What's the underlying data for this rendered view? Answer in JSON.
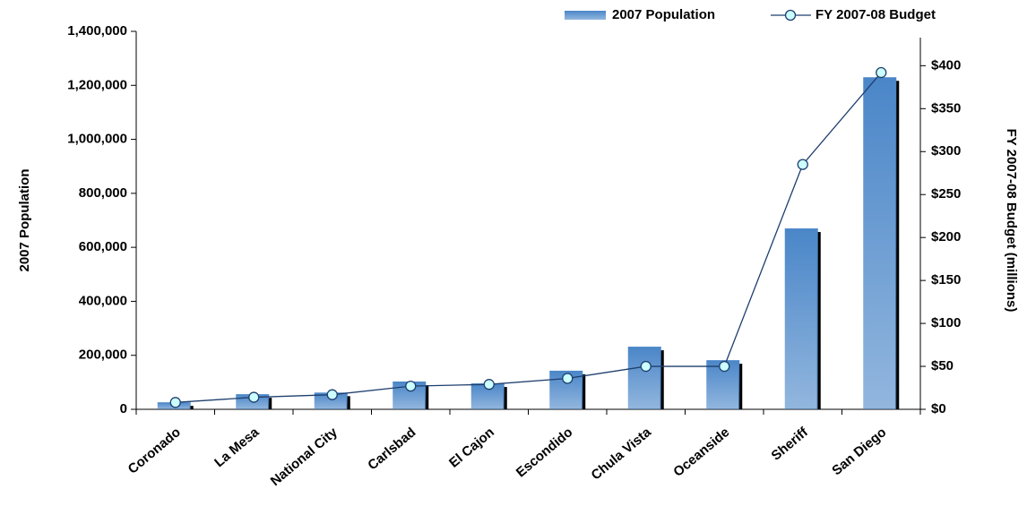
{
  "chart_data": {
    "type": "bar-line",
    "categories": [
      "Coronado",
      "La Mesa",
      "National City",
      "Carlsbad",
      "El Cajon",
      "Escondido",
      "Chula Vista",
      "Oceanside",
      "Sheriff",
      "San Diego"
    ],
    "series": [
      {
        "name": "2007 Population",
        "type": "bar",
        "color": "#4a86c8",
        "values": [
          26000,
          56000,
          62000,
          103000,
          96000,
          143000,
          232000,
          182000,
          670000,
          1230000
        ]
      },
      {
        "name": "FY 2007-08 Budget",
        "type": "line",
        "axis": "y2",
        "color": "#1f3f6e",
        "values": [
          8,
          14,
          17,
          27,
          29,
          36,
          50,
          50,
          285,
          392
        ]
      }
    ],
    "y_label": "2007 Population",
    "y2_label": "FY 2007-08 Budget (millions)",
    "ylim": [
      0,
      1400000
    ],
    "yticks": [
      0,
      {
        "value": 200000,
        "label": "200,000"
      },
      {
        "value": 400000,
        "label": "400,000"
      },
      {
        "value": 600000,
        "label": "600,000"
      },
      {
        "value": 800000,
        "label": "800,000"
      },
      {
        "value": 1000000,
        "label": "1,000,000"
      },
      {
        "value": 1200000,
        "label": "1,200,000"
      },
      {
        "value": 1400000,
        "label": "1,400,000"
      }
    ],
    "y2lim": [
      0,
      440
    ],
    "y2ticks": [
      {
        "value": 0,
        "label": "$0"
      },
      {
        "value": 50,
        "label": "$50"
      },
      {
        "value": 100,
        "label": "$100"
      },
      {
        "value": 150,
        "label": "$150"
      },
      {
        "value": 200,
        "label": "$200"
      },
      {
        "value": 250,
        "label": "$250"
      },
      {
        "value": 300,
        "label": "$300"
      },
      {
        "value": 350,
        "label": "$350"
      },
      {
        "value": 400,
        "label": "$400"
      }
    ],
    "grid": false,
    "legend": "top-right"
  }
}
